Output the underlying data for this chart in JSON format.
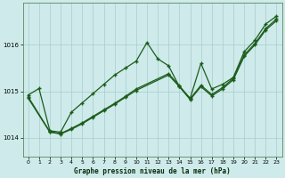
{
  "title": "Graphe pression niveau de la mer (hPa)",
  "bg_color": "#ceeaea",
  "grid_color": "#a8cccc",
  "line_color": "#1a5c1a",
  "xlim": [
    -0.5,
    23.5
  ],
  "ylim": [
    1013.6,
    1016.9
  ],
  "yticks": [
    1014,
    1015,
    1016
  ],
  "xticks": [
    0,
    1,
    2,
    3,
    4,
    5,
    6,
    7,
    8,
    9,
    10,
    11,
    12,
    13,
    14,
    15,
    16,
    17,
    18,
    19,
    20,
    21,
    22,
    23
  ],
  "zigzag_x": [
    0,
    1,
    2,
    3,
    4,
    5,
    6,
    7,
    8,
    9,
    10,
    11,
    12,
    13,
    14,
    15,
    16,
    17,
    18,
    19,
    20,
    21,
    22,
    23
  ],
  "zigzag_y": [
    1014.92,
    1015.06,
    1014.15,
    1014.12,
    1014.55,
    1014.75,
    1014.95,
    1015.15,
    1015.35,
    1015.5,
    1015.65,
    1016.05,
    1015.7,
    1015.55,
    1015.1,
    1014.85,
    1015.6,
    1015.05,
    1015.15,
    1015.3,
    1015.85,
    1016.1,
    1016.45,
    1016.62
  ],
  "trend1_x": [
    0,
    2,
    3,
    4,
    5,
    6,
    7,
    8,
    9,
    10,
    13,
    14,
    15,
    16,
    17,
    18,
    19,
    20,
    21,
    22,
    23
  ],
  "trend1_y": [
    1014.85,
    1014.12,
    1014.08,
    1014.18,
    1014.3,
    1014.44,
    1014.58,
    1014.72,
    1014.87,
    1015.02,
    1015.35,
    1015.1,
    1014.82,
    1015.1,
    1014.9,
    1015.05,
    1015.25,
    1015.75,
    1016.0,
    1016.32,
    1016.52
  ],
  "trend2_x": [
    0,
    2,
    3,
    4,
    5,
    6,
    7,
    8,
    9,
    10,
    13,
    14,
    15,
    16,
    17,
    18,
    19,
    20,
    21,
    22,
    23
  ],
  "trend2_y": [
    1014.88,
    1014.13,
    1014.09,
    1014.2,
    1014.32,
    1014.46,
    1014.6,
    1014.74,
    1014.89,
    1015.05,
    1015.38,
    1015.12,
    1014.84,
    1015.13,
    1014.93,
    1015.08,
    1015.28,
    1015.78,
    1016.03,
    1016.35,
    1016.56
  ]
}
